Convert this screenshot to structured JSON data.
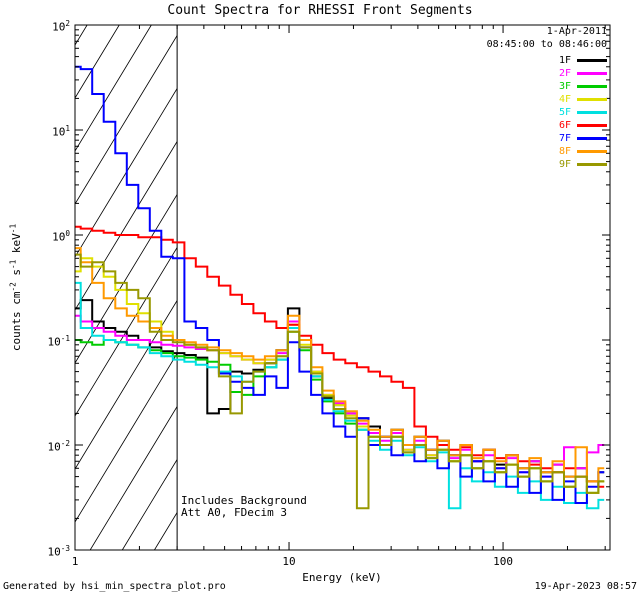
{
  "title": "Count Spectra for RHESSI Front Segments",
  "legend": {
    "date": "1-Apr-2011",
    "time_range": "08:45:00 to 08:46:00"
  },
  "annotations": {
    "line1": "Includes Background",
    "line2": "Att A0, FDecim 3"
  },
  "footer": {
    "left": "Generated by hsi_min_spectra_plot.pro",
    "right": "19-Apr-2023 08:57"
  },
  "chart_data": {
    "type": "line",
    "title": "Count Spectra for RHESSI Front Segments",
    "xlabel": "Energy (keV)",
    "ylabel": "counts cm^-2 s^-1 keV^-1",
    "xscale": "log",
    "yscale": "log",
    "xlim": [
      1,
      316
    ],
    "ylim": [
      0.001,
      100
    ],
    "x_ticks": [
      {
        "value": 1,
        "label": "1"
      },
      {
        "value": 10,
        "label": "10"
      },
      {
        "value": 100,
        "label": "100"
      }
    ],
    "y_ticks": [
      {
        "value": 100,
        "label": "10^2"
      },
      {
        "value": 10,
        "label": "10^1"
      },
      {
        "value": 1,
        "label": "10^0"
      },
      {
        "value": 0.1,
        "label": "10^-1"
      },
      {
        "value": 0.01,
        "label": "10^-2"
      },
      {
        "value": 0.001,
        "label": "10^-3"
      }
    ],
    "hatch_region": {
      "xmin": 1.0,
      "xmax": 3.0
    },
    "energies": [
      1.0,
      1.13,
      1.28,
      1.45,
      1.64,
      1.86,
      2.1,
      2.38,
      2.69,
      3.05,
      3.45,
      3.9,
      4.42,
      5.0,
      5.66,
      6.41,
      7.25,
      8.21,
      9.29,
      10.5,
      11.9,
      13.5,
      15.2,
      17.2,
      19.5,
      22.1,
      25.0,
      28.3,
      32.0,
      36.2,
      41.0,
      46.4,
      52.5,
      59.4,
      67.2,
      76.1,
      86.1,
      97.5,
      110,
      125,
      141,
      160,
      181,
      205,
      232,
      262,
      297
    ],
    "series": [
      {
        "name": "1F",
        "color": "#000000",
        "values": [
          0.2,
          0.24,
          0.15,
          0.13,
          0.12,
          0.11,
          0.1,
          0.085,
          0.078,
          0.075,
          0.072,
          0.068,
          0.02,
          0.022,
          0.05,
          0.048,
          0.052,
          0.06,
          0.08,
          0.2,
          0.1,
          0.045,
          0.028,
          0.024,
          0.02,
          0.018,
          0.015,
          0.012,
          0.014,
          0.01,
          0.012,
          0.009,
          0.011,
          0.008,
          0.01,
          0.007,
          0.009,
          0.0065,
          0.008,
          0.006,
          0.007,
          0.0055,
          0.0065,
          0.005,
          0.006,
          0.0045,
          0.0055
        ]
      },
      {
        "name": "2F",
        "color": "#ff00ff",
        "values": [
          0.17,
          0.15,
          0.13,
          0.12,
          0.11,
          0.1,
          0.1,
          0.095,
          0.09,
          0.088,
          0.085,
          0.082,
          0.08,
          0.075,
          0.07,
          0.065,
          0.06,
          0.065,
          0.075,
          0.15,
          0.085,
          0.05,
          0.03,
          0.025,
          0.02,
          0.016,
          0.013,
          0.011,
          0.013,
          0.009,
          0.011,
          0.008,
          0.01,
          0.0075,
          0.009,
          0.007,
          0.008,
          0.006,
          0.0075,
          0.0055,
          0.007,
          0.005,
          0.0065,
          0.0095,
          0.006,
          0.0085,
          0.01
        ]
      },
      {
        "name": "3F",
        "color": "#00cc00",
        "values": [
          0.1,
          0.095,
          0.09,
          0.1,
          0.095,
          0.09,
          0.085,
          0.08,
          0.075,
          0.07,
          0.068,
          0.065,
          0.062,
          0.058,
          0.032,
          0.03,
          0.045,
          0.055,
          0.065,
          0.12,
          0.08,
          0.042,
          0.026,
          0.02,
          0.016,
          0.014,
          0.012,
          0.01,
          0.012,
          0.0085,
          0.01,
          0.0075,
          0.009,
          0.007,
          0.008,
          0.006,
          0.007,
          0.0055,
          0.0065,
          0.005,
          0.006,
          0.0045,
          0.0055,
          0.004,
          0.005,
          0.0035,
          0.0045
        ]
      },
      {
        "name": "4F",
        "color": "#e0e000",
        "values": [
          0.45,
          0.6,
          0.5,
          0.4,
          0.3,
          0.22,
          0.18,
          0.15,
          0.12,
          0.1,
          0.09,
          0.085,
          0.08,
          0.075,
          0.07,
          0.065,
          0.06,
          0.065,
          0.07,
          0.14,
          0.09,
          0.05,
          0.03,
          0.024,
          0.019,
          0.015,
          0.012,
          0.01,
          0.012,
          0.009,
          0.01,
          0.008,
          0.009,
          0.007,
          0.008,
          0.006,
          0.007,
          0.0055,
          0.0065,
          0.005,
          0.006,
          0.0045,
          0.0055,
          0.004,
          0.005,
          0.0035,
          0.0045
        ]
      },
      {
        "name": "5F",
        "color": "#00e0e0",
        "values": [
          0.35,
          0.13,
          0.11,
          0.1,
          0.095,
          0.09,
          0.085,
          0.075,
          0.07,
          0.065,
          0.062,
          0.058,
          0.055,
          0.05,
          0.045,
          0.04,
          0.05,
          0.055,
          0.065,
          0.13,
          0.085,
          0.045,
          0.027,
          0.021,
          0.017,
          0.014,
          0.011,
          0.009,
          0.011,
          0.008,
          0.0095,
          0.007,
          0.0085,
          0.0025,
          0.006,
          0.0045,
          0.0055,
          0.004,
          0.005,
          0.0035,
          0.0045,
          0.003,
          0.004,
          0.0028,
          0.0035,
          0.0025,
          0.003
        ]
      },
      {
        "name": "6F",
        "color": "#ff0000",
        "values": [
          1.2,
          1.15,
          1.1,
          1.05,
          1.0,
          1.0,
          0.95,
          0.95,
          0.9,
          0.85,
          0.6,
          0.5,
          0.4,
          0.33,
          0.27,
          0.22,
          0.18,
          0.15,
          0.13,
          0.14,
          0.11,
          0.09,
          0.075,
          0.065,
          0.06,
          0.055,
          0.05,
          0.045,
          0.04,
          0.035,
          0.015,
          0.012,
          0.01,
          0.009,
          0.0095,
          0.008,
          0.009,
          0.0075,
          0.008,
          0.007,
          0.0065,
          0.006,
          0.0055,
          0.006,
          0.005,
          0.0045,
          0.004
        ]
      },
      {
        "name": "7F",
        "color": "#0000ff",
        "values": [
          40,
          38,
          22,
          12,
          6.0,
          3.0,
          1.8,
          1.1,
          0.62,
          0.6,
          0.15,
          0.13,
          0.1,
          0.048,
          0.04,
          0.035,
          0.03,
          0.045,
          0.035,
          0.095,
          0.05,
          0.03,
          0.02,
          0.015,
          0.012,
          0.018,
          0.01,
          0.012,
          0.008,
          0.01,
          0.007,
          0.009,
          0.006,
          0.008,
          0.005,
          0.007,
          0.0045,
          0.006,
          0.004,
          0.0055,
          0.0035,
          0.005,
          0.003,
          0.0045,
          0.0028,
          0.004,
          0.0055
        ]
      },
      {
        "name": "8F",
        "color": "#ff9900",
        "values": [
          0.75,
          0.55,
          0.35,
          0.25,
          0.2,
          0.17,
          0.15,
          0.13,
          0.11,
          0.1,
          0.095,
          0.09,
          0.085,
          0.08,
          0.075,
          0.07,
          0.065,
          0.07,
          0.08,
          0.17,
          0.1,
          0.055,
          0.033,
          0.026,
          0.021,
          0.017,
          0.014,
          0.012,
          0.014,
          0.01,
          0.012,
          0.009,
          0.011,
          0.008,
          0.01,
          0.0075,
          0.009,
          0.007,
          0.008,
          0.006,
          0.0075,
          0.0055,
          0.007,
          0.005,
          0.0095,
          0.0045,
          0.006
        ]
      },
      {
        "name": "9F",
        "color": "#989800",
        "values": [
          0.65,
          0.5,
          0.55,
          0.45,
          0.35,
          0.3,
          0.25,
          0.12,
          0.1,
          0.095,
          0.09,
          0.085,
          0.08,
          0.045,
          0.02,
          0.04,
          0.05,
          0.06,
          0.07,
          0.12,
          0.085,
          0.048,
          0.029,
          0.022,
          0.018,
          0.0025,
          0.012,
          0.01,
          0.012,
          0.0085,
          0.01,
          0.0075,
          0.009,
          0.007,
          0.008,
          0.006,
          0.007,
          0.0055,
          0.0065,
          0.005,
          0.006,
          0.0045,
          0.0055,
          0.004,
          0.005,
          0.0035,
          0.0045
        ]
      }
    ]
  }
}
